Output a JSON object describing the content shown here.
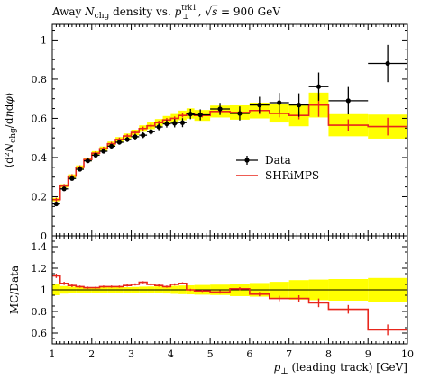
{
  "title": "Away N_chg density vs. p_⊥^trk1, √s = 900 GeV",
  "chart_data": [
    {
      "type": "line",
      "panel": "main",
      "title": "Away N_chg density vs. p_⊥^trk1, √s = 900 GeV",
      "ylabel": "⟨d²N_chg/dηdφ⟩",
      "xlim": [
        1,
        10
      ],
      "ylim": [
        0,
        1.08
      ],
      "yticks": [
        "0.2",
        "0.4",
        "0.6",
        "0.8",
        "1"
      ],
      "legend": {
        "placement": "center-right",
        "entries": [
          "Data",
          "SHRiMPS"
        ]
      },
      "colors": {
        "data": "#000000",
        "mc": "#e8261c",
        "band": "#ffff00"
      },
      "series": [
        {
          "name": "Data",
          "style": "points-with-errors",
          "points": [
            {
              "x": 1.1,
              "y": 0.163,
              "xerr": 0.1,
              "yerr": 0.008
            },
            {
              "x": 1.3,
              "y": 0.24,
              "xerr": 0.1,
              "yerr": 0.008
            },
            {
              "x": 1.5,
              "y": 0.293,
              "xerr": 0.1,
              "yerr": 0.008
            },
            {
              "x": 1.7,
              "y": 0.34,
              "xerr": 0.1,
              "yerr": 0.009
            },
            {
              "x": 1.9,
              "y": 0.383,
              "xerr": 0.1,
              "yerr": 0.009
            },
            {
              "x": 2.1,
              "y": 0.412,
              "xerr": 0.1,
              "yerr": 0.01
            },
            {
              "x": 2.3,
              "y": 0.432,
              "xerr": 0.1,
              "yerr": 0.01
            },
            {
              "x": 2.5,
              "y": 0.458,
              "xerr": 0.1,
              "yerr": 0.011
            },
            {
              "x": 2.7,
              "y": 0.478,
              "xerr": 0.1,
              "yerr": 0.012
            },
            {
              "x": 2.9,
              "y": 0.492,
              "xerr": 0.1,
              "yerr": 0.013
            },
            {
              "x": 3.1,
              "y": 0.506,
              "xerr": 0.1,
              "yerr": 0.014
            },
            {
              "x": 3.3,
              "y": 0.514,
              "xerr": 0.1,
              "yerr": 0.015
            },
            {
              "x": 3.5,
              "y": 0.532,
              "xerr": 0.1,
              "yerr": 0.016
            },
            {
              "x": 3.7,
              "y": 0.556,
              "xerr": 0.1,
              "yerr": 0.017
            },
            {
              "x": 3.9,
              "y": 0.572,
              "xerr": 0.1,
              "yerr": 0.019
            },
            {
              "x": 4.1,
              "y": 0.575,
              "xerr": 0.1,
              "yerr": 0.021
            },
            {
              "x": 4.3,
              "y": 0.578,
              "xerr": 0.1,
              "yerr": 0.023
            },
            {
              "x": 4.5,
              "y": 0.622,
              "xerr": 0.1,
              "yerr": 0.026
            },
            {
              "x": 4.75,
              "y": 0.618,
              "xerr": 0.25,
              "yerr": 0.028
            },
            {
              "x": 5.25,
              "y": 0.648,
              "xerr": 0.25,
              "yerr": 0.031
            },
            {
              "x": 5.75,
              "y": 0.625,
              "xerr": 0.25,
              "yerr": 0.036
            },
            {
              "x": 6.25,
              "y": 0.668,
              "xerr": 0.25,
              "yerr": 0.042
            },
            {
              "x": 6.75,
              "y": 0.68,
              "xerr": 0.25,
              "yerr": 0.05
            },
            {
              "x": 7.25,
              "y": 0.668,
              "xerr": 0.25,
              "yerr": 0.06
            },
            {
              "x": 7.75,
              "y": 0.762,
              "xerr": 0.25,
              "yerr": 0.072
            },
            {
              "x": 8.5,
              "y": 0.69,
              "xerr": 0.5,
              "yerr": 0.07
            },
            {
              "x": 9.5,
              "y": 0.88,
              "xerr": 0.5,
              "yerr": 0.095
            }
          ]
        },
        {
          "name": "SHRiMPS",
          "style": "step-with-errors",
          "bins": [
            {
              "lo": 1.0,
              "hi": 1.2,
              "y": 0.185,
              "err": 0.01
            },
            {
              "lo": 1.2,
              "hi": 1.4,
              "y": 0.255,
              "err": 0.01
            },
            {
              "lo": 1.4,
              "hi": 1.6,
              "y": 0.305,
              "err": 0.01
            },
            {
              "lo": 1.6,
              "hi": 1.8,
              "y": 0.35,
              "err": 0.01
            },
            {
              "lo": 1.8,
              "hi": 2.0,
              "y": 0.39,
              "err": 0.01
            },
            {
              "lo": 2.0,
              "hi": 2.2,
              "y": 0.422,
              "err": 0.01
            },
            {
              "lo": 2.2,
              "hi": 2.4,
              "y": 0.445,
              "err": 0.01
            },
            {
              "lo": 2.4,
              "hi": 2.6,
              "y": 0.47,
              "err": 0.01
            },
            {
              "lo": 2.6,
              "hi": 2.8,
              "y": 0.492,
              "err": 0.01
            },
            {
              "lo": 2.8,
              "hi": 3.0,
              "y": 0.51,
              "err": 0.01
            },
            {
              "lo": 3.0,
              "hi": 3.2,
              "y": 0.528,
              "err": 0.01
            },
            {
              "lo": 3.2,
              "hi": 3.4,
              "y": 0.548,
              "err": 0.01
            },
            {
              "lo": 3.4,
              "hi": 3.6,
              "y": 0.562,
              "err": 0.01
            },
            {
              "lo": 3.6,
              "hi": 3.8,
              "y": 0.578,
              "err": 0.01
            },
            {
              "lo": 3.8,
              "hi": 4.0,
              "y": 0.592,
              "err": 0.01
            },
            {
              "lo": 4.0,
              "hi": 4.2,
              "y": 0.6,
              "err": 0.01
            },
            {
              "lo": 4.2,
              "hi": 4.4,
              "y": 0.615,
              "err": 0.01
            },
            {
              "lo": 4.4,
              "hi": 4.6,
              "y": 0.625,
              "err": 0.01
            },
            {
              "lo": 4.6,
              "hi": 5.0,
              "y": 0.615,
              "err": 0.01
            },
            {
              "lo": 5.0,
              "hi": 5.5,
              "y": 0.635,
              "err": 0.015
            },
            {
              "lo": 5.5,
              "hi": 6.0,
              "y": 0.63,
              "err": 0.015
            },
            {
              "lo": 6.0,
              "hi": 6.5,
              "y": 0.64,
              "err": 0.02
            },
            {
              "lo": 6.5,
              "hi": 7.0,
              "y": 0.625,
              "err": 0.02
            },
            {
              "lo": 7.0,
              "hi": 7.5,
              "y": 0.615,
              "err": 0.02
            },
            {
              "lo": 7.5,
              "hi": 8.0,
              "y": 0.668,
              "err": 0.06
            },
            {
              "lo": 8.0,
              "hi": 9.0,
              "y": 0.565,
              "err": 0.03
            },
            {
              "lo": 9.0,
              "hi": 10.0,
              "y": 0.558,
              "err": 0.045
            }
          ]
        }
      ],
      "band": [
        {
          "lo": 1.0,
          "hi": 1.2,
          "rel": 0.05
        },
        {
          "lo": 1.2,
          "hi": 1.4,
          "rel": 0.035
        },
        {
          "lo": 1.4,
          "hi": 1.6,
          "rel": 0.03
        },
        {
          "lo": 1.6,
          "hi": 1.8,
          "rel": 0.028
        },
        {
          "lo": 1.8,
          "hi": 2.0,
          "rel": 0.025
        },
        {
          "lo": 2.0,
          "hi": 2.2,
          "rel": 0.025
        },
        {
          "lo": 2.2,
          "hi": 2.4,
          "rel": 0.025
        },
        {
          "lo": 2.4,
          "hi": 2.6,
          "rel": 0.025
        },
        {
          "lo": 2.6,
          "hi": 2.8,
          "rel": 0.025
        },
        {
          "lo": 2.8,
          "hi": 3.0,
          "rel": 0.025
        },
        {
          "lo": 3.0,
          "hi": 3.2,
          "rel": 0.027
        },
        {
          "lo": 3.2,
          "hi": 3.4,
          "rel": 0.03
        },
        {
          "lo": 3.4,
          "hi": 3.6,
          "rel": 0.031
        },
        {
          "lo": 3.6,
          "hi": 3.8,
          "rel": 0.032
        },
        {
          "lo": 3.8,
          "hi": 4.0,
          "rel": 0.034
        },
        {
          "lo": 4.0,
          "hi": 4.2,
          "rel": 0.037
        },
        {
          "lo": 4.2,
          "hi": 4.4,
          "rel": 0.04
        },
        {
          "lo": 4.4,
          "hi": 4.6,
          "rel": 0.042
        },
        {
          "lo": 4.6,
          "hi": 5.0,
          "rel": 0.045
        },
        {
          "lo": 5.0,
          "hi": 5.5,
          "rel": 0.048
        },
        {
          "lo": 5.5,
          "hi": 6.0,
          "rel": 0.058
        },
        {
          "lo": 6.0,
          "hi": 6.5,
          "rel": 0.063
        },
        {
          "lo": 6.5,
          "hi": 7.0,
          "rel": 0.074
        },
        {
          "lo": 7.0,
          "hi": 7.5,
          "rel": 0.09
        },
        {
          "lo": 7.5,
          "hi": 8.0,
          "rel": 0.095
        },
        {
          "lo": 8.0,
          "hi": 9.0,
          "rel": 0.1
        },
        {
          "lo": 9.0,
          "hi": 10.0,
          "rel": 0.11
        }
      ]
    },
    {
      "type": "line",
      "panel": "ratio",
      "ylabel": "MC/Data",
      "xlabel": "p_⊥ (leading track) [GeV]",
      "xlim": [
        1,
        10
      ],
      "ylim": [
        0.5,
        1.5
      ],
      "xticks": [
        "1",
        "2",
        "3",
        "4",
        "5",
        "6",
        "7",
        "8",
        "9",
        "10"
      ],
      "yticks": [
        "0.6",
        "0.8",
        "1",
        "1.2",
        "1.4"
      ],
      "series": [
        {
          "name": "SHRiMPS",
          "style": "step-with-errors",
          "bins": [
            {
              "lo": 1.0,
              "hi": 1.2,
              "y": 1.13,
              "err": 0.02
            },
            {
              "lo": 1.2,
              "hi": 1.4,
              "y": 1.06,
              "err": 0.015
            },
            {
              "lo": 1.4,
              "hi": 1.6,
              "y": 1.04,
              "err": 0.015
            },
            {
              "lo": 1.6,
              "hi": 1.8,
              "y": 1.03,
              "err": 0.01
            },
            {
              "lo": 1.8,
              "hi": 2.0,
              "y": 1.02,
              "err": 0.01
            },
            {
              "lo": 2.0,
              "hi": 2.2,
              "y": 1.02,
              "err": 0.01
            },
            {
              "lo": 2.2,
              "hi": 2.4,
              "y": 1.03,
              "err": 0.01
            },
            {
              "lo": 2.4,
              "hi": 2.6,
              "y": 1.03,
              "err": 0.01
            },
            {
              "lo": 2.6,
              "hi": 2.8,
              "y": 1.03,
              "err": 0.01
            },
            {
              "lo": 2.8,
              "hi": 3.0,
              "y": 1.04,
              "err": 0.01
            },
            {
              "lo": 3.0,
              "hi": 3.2,
              "y": 1.05,
              "err": 0.01
            },
            {
              "lo": 3.2,
              "hi": 3.4,
              "y": 1.07,
              "err": 0.01
            },
            {
              "lo": 3.4,
              "hi": 3.6,
              "y": 1.05,
              "err": 0.01
            },
            {
              "lo": 3.6,
              "hi": 3.8,
              "y": 1.04,
              "err": 0.01
            },
            {
              "lo": 3.8,
              "hi": 4.0,
              "y": 1.03,
              "err": 0.01
            },
            {
              "lo": 4.0,
              "hi": 4.2,
              "y": 1.05,
              "err": 0.01
            },
            {
              "lo": 4.2,
              "hi": 4.4,
              "y": 1.06,
              "err": 0.01
            },
            {
              "lo": 4.4,
              "hi": 4.6,
              "y": 1.0,
              "err": 0.01
            },
            {
              "lo": 4.6,
              "hi": 5.0,
              "y": 0.99,
              "err": 0.01
            },
            {
              "lo": 5.0,
              "hi": 5.5,
              "y": 0.98,
              "err": 0.015
            },
            {
              "lo": 5.5,
              "hi": 6.0,
              "y": 1.01,
              "err": 0.015
            },
            {
              "lo": 6.0,
              "hi": 6.5,
              "y": 0.96,
              "err": 0.02
            },
            {
              "lo": 6.5,
              "hi": 7.0,
              "y": 0.92,
              "err": 0.025
            },
            {
              "lo": 7.0,
              "hi": 7.5,
              "y": 0.92,
              "err": 0.03
            },
            {
              "lo": 7.5,
              "hi": 8.0,
              "y": 0.88,
              "err": 0.04
            },
            {
              "lo": 8.0,
              "hi": 9.0,
              "y": 0.82,
              "err": 0.04
            },
            {
              "lo": 9.0,
              "hi": 10.0,
              "y": 0.63,
              "err": 0.05
            }
          ]
        }
      ]
    }
  ]
}
